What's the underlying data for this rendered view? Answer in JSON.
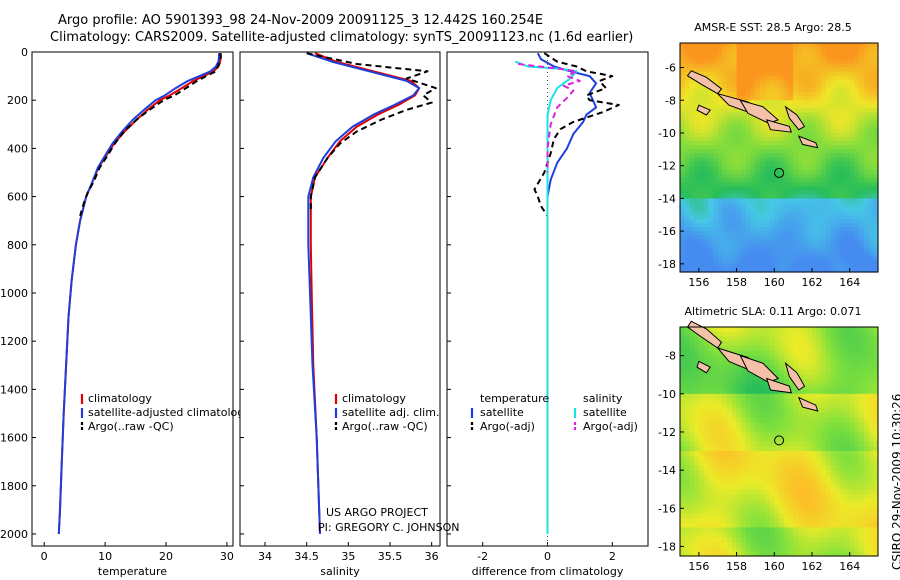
{
  "header": {
    "line1": "Argo profile: AO 5901393_98 24-Nov-2009 20091125_3 12.442S 160.254E",
    "line2": "Climatology: CARS2009. Satellite-adjusted climatology: synTS_20091123.nc (1.6d earlier)"
  },
  "credit": {
    "project": "US ARGO PROJECT",
    "pi": "PI: GREGORY C. JOHNSON",
    "stamp": "CSIRO 29-Nov-2009 10:30:26"
  },
  "colors": {
    "climatology": "#e00000",
    "satellite": "#1f3fdc",
    "argo": "#000000",
    "sat_diff": "#18e4e8",
    "argo_sal_diff": "#e020e0",
    "land": "#f5c0a8"
  },
  "chart_data": [
    {
      "id": "temperature",
      "type": "line",
      "xlabel": "temperature",
      "ylabel": "",
      "xlim": [
        -2,
        31
      ],
      "ylim": [
        2050,
        0
      ],
      "xticks": [
        0,
        10,
        20,
        30
      ],
      "yticks": [
        0,
        200,
        400,
        600,
        800,
        1000,
        1200,
        1400,
        1600,
        1800,
        2000
      ],
      "legend": [
        "climatology",
        "satellite-adjusted climatology",
        "Argo(..raw -QC)"
      ],
      "series": [
        {
          "name": "climatology",
          "color": "#e00000",
          "dash": "",
          "points": [
            [
              29.0,
              5
            ],
            [
              29.0,
              20
            ],
            [
              28.9,
              40
            ],
            [
              28.6,
              60
            ],
            [
              27.8,
              80
            ],
            [
              26.2,
              100
            ],
            [
              24.5,
              120
            ],
            [
              22.6,
              150
            ],
            [
              20.6,
              180
            ],
            [
              19.0,
              200
            ],
            [
              17.0,
              240
            ],
            [
              15.2,
              280
            ],
            [
              13.2,
              330
            ],
            [
              11.5,
              380
            ],
            [
              10.2,
              430
            ],
            [
              8.9,
              480
            ],
            [
              7.9,
              540
            ],
            [
              6.9,
              600
            ],
            [
              5.9,
              700
            ],
            [
              5.2,
              800
            ],
            [
              4.5,
              950
            ],
            [
              4.0,
              1100
            ],
            [
              3.6,
              1300
            ],
            [
              3.2,
              1500
            ],
            [
              2.9,
              1700
            ],
            [
              2.6,
              1900
            ],
            [
              2.4,
              2000
            ]
          ]
        },
        {
          "name": "satellite-adjusted climatology",
          "color": "#1f3fdc",
          "dash": "",
          "points": [
            [
              28.7,
              5
            ],
            [
              28.7,
              20
            ],
            [
              28.6,
              40
            ],
            [
              28.2,
              60
            ],
            [
              27.3,
              80
            ],
            [
              25.5,
              100
            ],
            [
              23.6,
              120
            ],
            [
              21.6,
              150
            ],
            [
              19.8,
              180
            ],
            [
              18.3,
              200
            ],
            [
              16.4,
              240
            ],
            [
              14.6,
              280
            ],
            [
              12.8,
              330
            ],
            [
              11.2,
              380
            ],
            [
              10.0,
              430
            ],
            [
              8.8,
              480
            ],
            [
              7.9,
              540
            ],
            [
              6.9,
              600
            ],
            [
              5.9,
              700
            ],
            [
              5.2,
              800
            ],
            [
              4.5,
              950
            ],
            [
              4.0,
              1100
            ],
            [
              3.6,
              1300
            ],
            [
              3.2,
              1500
            ],
            [
              2.9,
              1700
            ],
            [
              2.6,
              1900
            ],
            [
              2.4,
              2000
            ]
          ]
        },
        {
          "name": "Argo(..raw -QC)",
          "color": "#000000",
          "dash": "6,4",
          "points": [
            [
              28.9,
              5
            ],
            [
              29.0,
              20
            ],
            [
              28.9,
              40
            ],
            [
              28.5,
              60
            ],
            [
              28.2,
              80
            ],
            [
              26.6,
              100
            ],
            [
              25.1,
              120
            ],
            [
              23.3,
              150
            ],
            [
              21.4,
              180
            ],
            [
              19.6,
              200
            ],
            [
              17.3,
              240
            ],
            [
              15.2,
              280
            ],
            [
              13.1,
              330
            ],
            [
              11.6,
              380
            ],
            [
              10.4,
              430
            ],
            [
              9.1,
              480
            ],
            [
              8.1,
              540
            ],
            [
              7.2,
              580
            ],
            [
              6.6,
              620
            ],
            [
              5.9,
              680
            ]
          ]
        }
      ]
    },
    {
      "id": "salinity",
      "type": "line",
      "xlabel": "salinity",
      "ylabel": "",
      "xlim": [
        33.7,
        36.1
      ],
      "ylim": [
        2050,
        0
      ],
      "xticks": [
        34,
        34.5,
        35,
        35.5,
        36
      ],
      "yticks": [
        0,
        200,
        400,
        600,
        800,
        1000,
        1200,
        1400,
        1600,
        1800,
        2000
      ],
      "legend": [
        "climatology",
        "satellite adj. clim.",
        "Argo(..raw -QC)"
      ],
      "series": [
        {
          "name": "climatology",
          "color": "#e00000",
          "dash": "",
          "points": [
            [
              34.6,
              5
            ],
            [
              34.85,
              40
            ],
            [
              35.3,
              80
            ],
            [
              35.75,
              120
            ],
            [
              35.85,
              150
            ],
            [
              35.8,
              180
            ],
            [
              35.6,
              220
            ],
            [
              35.35,
              260
            ],
            [
              35.1,
              310
            ],
            [
              34.9,
              370
            ],
            [
              34.75,
              440
            ],
            [
              34.6,
              520
            ],
            [
              34.55,
              600
            ],
            [
              34.55,
              800
            ],
            [
              34.56,
              1000
            ],
            [
              34.58,
              1300
            ],
            [
              34.62,
              1600
            ],
            [
              34.66,
              2000
            ]
          ]
        },
        {
          "name": "satellite adj. clim.",
          "color": "#1f3fdc",
          "dash": "",
          "points": [
            [
              34.5,
              5
            ],
            [
              34.8,
              40
            ],
            [
              35.25,
              80
            ],
            [
              35.7,
              120
            ],
            [
              35.85,
              150
            ],
            [
              35.78,
              180
            ],
            [
              35.55,
              220
            ],
            [
              35.3,
              260
            ],
            [
              35.05,
              310
            ],
            [
              34.85,
              370
            ],
            [
              34.7,
              440
            ],
            [
              34.58,
              520
            ],
            [
              34.52,
              600
            ],
            [
              34.52,
              800
            ],
            [
              34.54,
              1000
            ],
            [
              34.57,
              1300
            ],
            [
              34.62,
              1600
            ],
            [
              34.66,
              2000
            ]
          ]
        },
        {
          "name": "Argo(..raw -QC)",
          "color": "#000000",
          "dash": "6,4",
          "points": [
            [
              34.5,
              5
            ],
            [
              35.1,
              50
            ],
            [
              35.95,
              80
            ],
            [
              35.7,
              110
            ],
            [
              36.05,
              150
            ],
            [
              35.9,
              180
            ],
            [
              36.0,
              210
            ],
            [
              35.7,
              240
            ],
            [
              35.4,
              280
            ],
            [
              35.1,
              330
            ],
            [
              34.9,
              380
            ],
            [
              34.75,
              440
            ],
            [
              34.6,
              520
            ],
            [
              34.55,
              600
            ],
            [
              34.55,
              660
            ]
          ]
        }
      ]
    },
    {
      "id": "difference",
      "type": "line",
      "xlabel": "difference from climatology",
      "ylabel": "",
      "xlim": [
        -3.1,
        3.1
      ],
      "ylim": [
        2050,
        0
      ],
      "xticks": [
        -2,
        0,
        2
      ],
      "yticks": [
        0,
        200,
        400,
        600,
        800,
        1000,
        1200,
        1400,
        1600,
        1800,
        2000
      ],
      "legend_groups": [
        {
          "heading": "temperature",
          "items": [
            "satellite",
            "Argo(-adj)"
          ]
        },
        {
          "heading": "salinity",
          "items": [
            "satellite",
            "Argo(-adj)"
          ]
        }
      ],
      "series": [
        {
          "name": "temperature satellite",
          "color": "#1f3fdc",
          "dash": "",
          "points": [
            [
              -0.3,
              5
            ],
            [
              -0.2,
              30
            ],
            [
              0.2,
              60
            ],
            [
              0.7,
              80
            ],
            [
              1.3,
              100
            ],
            [
              1.5,
              130
            ],
            [
              1.3,
              170
            ],
            [
              1.4,
              200
            ],
            [
              1.5,
              230
            ],
            [
              1.2,
              260
            ],
            [
              1.1,
              290
            ],
            [
              0.8,
              340
            ],
            [
              0.6,
              400
            ],
            [
              0.3,
              460
            ],
            [
              0.1,
              530
            ],
            [
              0.0,
              600
            ],
            [
              0.0,
              800
            ],
            [
              0.0,
              1200
            ],
            [
              0.0,
              1600
            ],
            [
              0.0,
              2000
            ]
          ]
        },
        {
          "name": "temperature Argo(-adj)",
          "color": "#000000",
          "dash": "6,4",
          "points": [
            [
              -0.1,
              5
            ],
            [
              0.3,
              40
            ],
            [
              0.9,
              60
            ],
            [
              1.2,
              80
            ],
            [
              2.0,
              100
            ],
            [
              1.6,
              120
            ],
            [
              1.8,
              150
            ],
            [
              1.2,
              180
            ],
            [
              1.3,
              200
            ],
            [
              2.2,
              220
            ],
            [
              1.7,
              250
            ],
            [
              0.8,
              290
            ],
            [
              0.4,
              320
            ],
            [
              0.2,
              360
            ],
            [
              0.1,
              420
            ],
            [
              -0.1,
              500
            ],
            [
              -0.4,
              570
            ],
            [
              -0.3,
              600
            ],
            [
              -0.2,
              640
            ],
            [
              0.0,
              680
            ]
          ]
        },
        {
          "name": "salinity satellite",
          "color": "#18e4e8",
          "dash": "",
          "points": [
            [
              -1.0,
              40
            ],
            [
              -0.6,
              60
            ],
            [
              0.4,
              70
            ],
            [
              0.9,
              80
            ],
            [
              0.7,
              110
            ],
            [
              0.3,
              150
            ],
            [
              0.1,
              200
            ],
            [
              0.0,
              260
            ],
            [
              0.0,
              400
            ],
            [
              0.0,
              800
            ],
            [
              0.0,
              1200
            ],
            [
              0.0,
              1600
            ],
            [
              0.0,
              2000
            ]
          ]
        },
        {
          "name": "salinity Argo(-adj)",
          "color": "#e020e0",
          "dash": "6,4",
          "points": [
            [
              -0.9,
              50
            ],
            [
              0.4,
              70
            ],
            [
              0.9,
              80
            ],
            [
              0.6,
              100
            ],
            [
              1.0,
              120
            ],
            [
              0.5,
              140
            ],
            [
              0.8,
              160
            ],
            [
              0.6,
              190
            ],
            [
              0.3,
              230
            ],
            [
              0.1,
              300
            ],
            [
              0.0,
              400
            ],
            [
              0.0,
              500
            ]
          ]
        }
      ]
    },
    {
      "id": "sst_map",
      "type": "heatmap",
      "title": "AMSR-E SST: 28.5  Argo: 28.5",
      "xlim": [
        155,
        165.5
      ],
      "ylim": [
        -18.5,
        -4.5
      ],
      "xticks": [
        156,
        158,
        160,
        162,
        164
      ],
      "yticks": [
        -6,
        -8,
        -10,
        -12,
        -14,
        -16,
        -18
      ],
      "marker": {
        "lon": 160.254,
        "lat": -12.442
      }
    },
    {
      "id": "sla_map",
      "type": "heatmap",
      "title": "Altimetric SLA: 0.11  Argo: 0.071",
      "xlim": [
        155,
        165.5
      ],
      "ylim": [
        -18.5,
        -6.5
      ],
      "xticks": [
        156,
        158,
        160,
        162,
        164
      ],
      "yticks": [
        -8,
        -10,
        -12,
        -14,
        -16,
        -18
      ],
      "marker": {
        "lon": 160.254,
        "lat": -12.442
      }
    }
  ]
}
